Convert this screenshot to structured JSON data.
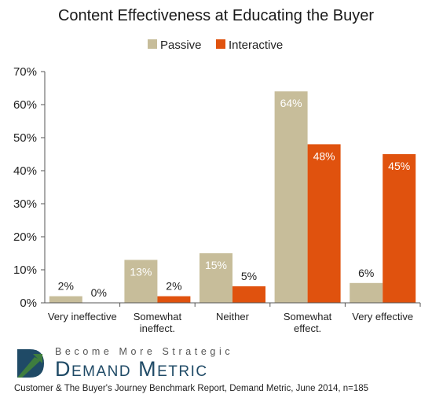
{
  "colors": {
    "passive": "#c7bd9a",
    "interactive": "#e0520e",
    "axis": "#555555",
    "brand_blue": "#1f4a66",
    "brand_green": "#3e7d3e"
  },
  "chart_data": {
    "type": "bar",
    "title": "Content Effectiveness at Educating the Buyer",
    "categories": [
      "Very ineffective",
      "Somewhat ineffect.",
      "Neither",
      "Somewhat effect.",
      "Very effective"
    ],
    "category_lines": [
      [
        "Very ineffective"
      ],
      [
        "Somewhat",
        "ineffect."
      ],
      [
        "Neither"
      ],
      [
        "Somewhat",
        "effect."
      ],
      [
        "Very effective"
      ]
    ],
    "series": [
      {
        "name": "Passive",
        "values": [
          2,
          13,
          15,
          64,
          6
        ],
        "labels": [
          "2%",
          "13%",
          "15%",
          "64%",
          "6%"
        ]
      },
      {
        "name": "Interactive",
        "values": [
          0,
          2,
          5,
          48,
          45
        ],
        "labels": [
          "0%",
          "2%",
          "5%",
          "48%",
          "45%"
        ]
      }
    ],
    "ylim": [
      0,
      70
    ],
    "yticks": [
      "0%",
      "10%",
      "20%",
      "30%",
      "40%",
      "50%",
      "60%",
      "70%"
    ],
    "xlabel": "",
    "ylabel": "",
    "legend_position": "top-center",
    "grid": false
  },
  "brand": {
    "tagline": "Become More Strategic",
    "name": "Demand Metric",
    "logo_icon": "demand-metric-logo-icon"
  },
  "source": "Customer & The Buyer's Journey Benchmark Report, Demand Metric, June 2014, n=185"
}
